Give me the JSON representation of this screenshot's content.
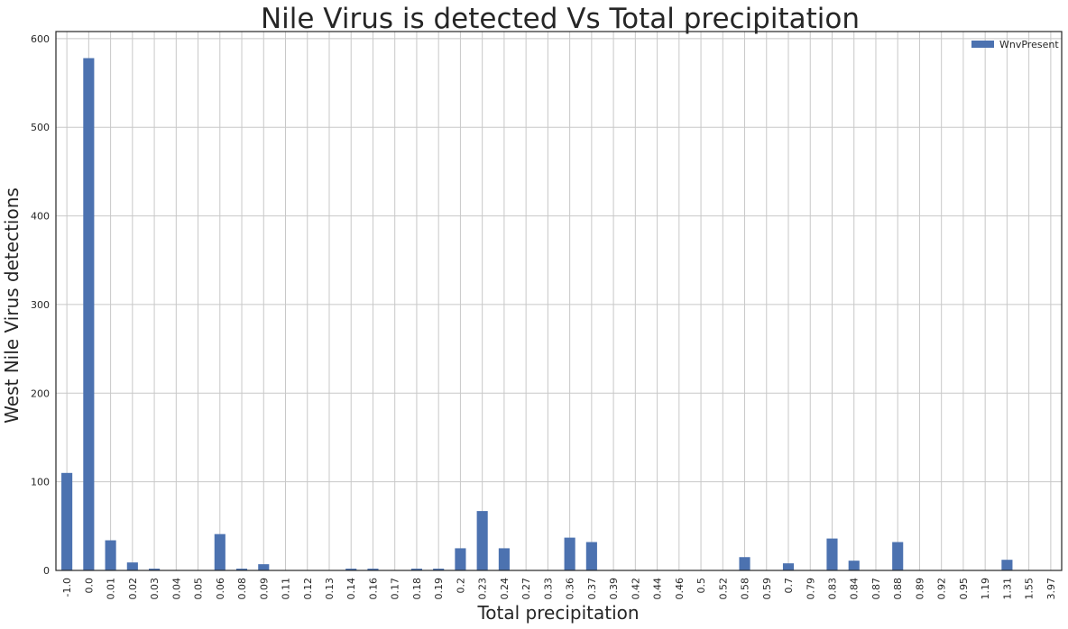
{
  "chart_data": {
    "type": "bar",
    "title": "Nile Virus is detected Vs Total precipitation",
    "xlabel": "Total precipitation",
    "ylabel": "West Nile Virus detections",
    "ylim": [
      0,
      608
    ],
    "yticks": [
      0,
      100,
      200,
      300,
      400,
      500,
      600
    ],
    "grid": true,
    "legend_position": "top-right",
    "categories": [
      "-1.0",
      "0.0",
      "0.01",
      "0.02",
      "0.03",
      "0.04",
      "0.05",
      "0.06",
      "0.08",
      "0.09",
      "0.11",
      "0.12",
      "0.13",
      "0.14",
      "0.16",
      "0.17",
      "0.18",
      "0.19",
      "0.2",
      "0.23",
      "0.24",
      "0.27",
      "0.33",
      "0.36",
      "0.37",
      "0.39",
      "0.42",
      "0.44",
      "0.46",
      "0.5",
      "0.52",
      "0.58",
      "0.59",
      "0.7",
      "0.79",
      "0.83",
      "0.84",
      "0.87",
      "0.88",
      "0.89",
      "0.92",
      "0.95",
      "1.19",
      "1.31",
      "1.55",
      "3.97"
    ],
    "series": [
      {
        "name": "WnvPresent",
        "color": "#4c72b0",
        "values": [
          110,
          578,
          34,
          9,
          2,
          0,
          0,
          41,
          2,
          7,
          0,
          0,
          0,
          2,
          2,
          0,
          2,
          2,
          25,
          67,
          25,
          0,
          0,
          37,
          32,
          0,
          0,
          0,
          0,
          0,
          0,
          15,
          0,
          8,
          0,
          36,
          11,
          0,
          32,
          0,
          0,
          0,
          0,
          12,
          0,
          0
        ]
      }
    ]
  }
}
